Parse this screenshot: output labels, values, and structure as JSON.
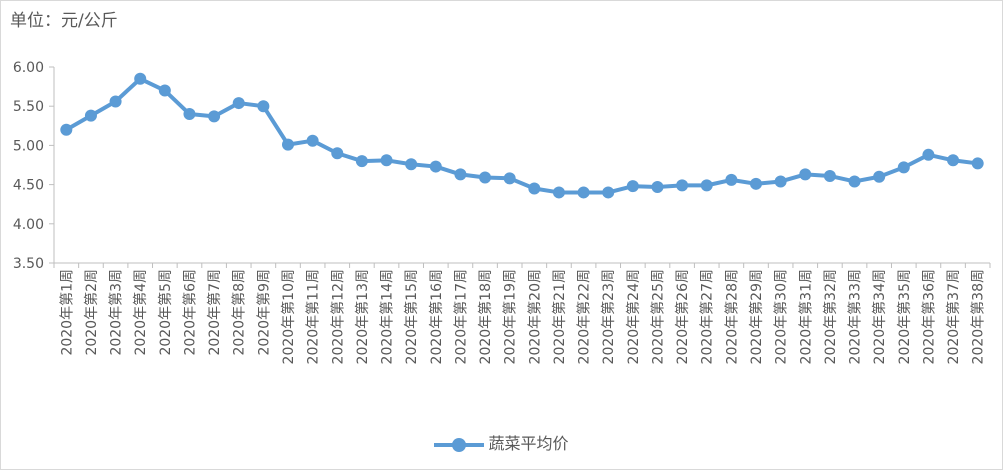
{
  "unit_label": "单位：元/公斤",
  "colors": {
    "series": "#5b9bd5",
    "axis": "#bfbfbf",
    "text": "#595959"
  },
  "chart_data": {
    "type": "line",
    "title": "",
    "xlabel": "",
    "ylabel": "",
    "ylim": [
      3.5,
      6.0
    ],
    "yticks": [
      "3.50",
      "4.00",
      "4.50",
      "5.00",
      "5.50",
      "6.00"
    ],
    "grid": false,
    "legend_position": "bottom",
    "categories": [
      "2020年第1周",
      "2020年第2周",
      "2020年第3周",
      "2020年第4周",
      "2020年第5周",
      "2020年第6周",
      "2020年第7周",
      "2020年第8周",
      "2020年第9周",
      "2020年第10周",
      "2020年第11周",
      "2020年第12周",
      "2020年第13周",
      "2020年第14周",
      "2020年第15周",
      "2020年第16周",
      "2020年第17周",
      "2020年第18周",
      "2020年第19周",
      "2020年第20周",
      "2020年第21周",
      "2020年第22周",
      "2020年第23周",
      "2020年第24周",
      "2020年第25周",
      "2020年第26周",
      "2020年第27周",
      "2020年第28周",
      "2020年第29周",
      "2020年第30周",
      "2020年第31周",
      "2020年第32周",
      "2020年第33周",
      "2020年第34周",
      "2020年第35周",
      "2020年第36周",
      "2020年第37周",
      "2020年第38周"
    ],
    "series": [
      {
        "name": "蔬菜平均价",
        "values": [
          5.2,
          5.38,
          5.56,
          5.85,
          5.7,
          5.4,
          5.37,
          5.54,
          5.5,
          5.01,
          5.06,
          4.9,
          4.8,
          4.81,
          4.76,
          4.73,
          4.63,
          4.59,
          4.58,
          4.45,
          4.4,
          4.4,
          4.4,
          4.48,
          4.47,
          4.49,
          4.49,
          4.56,
          4.51,
          4.54,
          4.63,
          4.61,
          4.54,
          4.6,
          4.72,
          4.88,
          4.81,
          4.77
        ]
      }
    ]
  }
}
